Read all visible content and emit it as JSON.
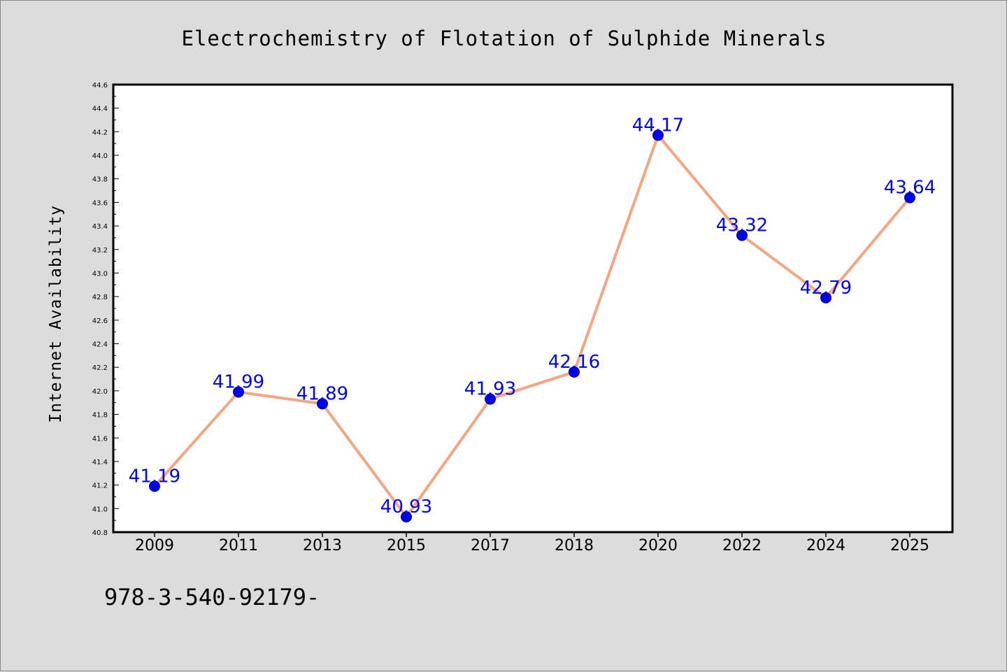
{
  "figure": {
    "footer_text": "978-3-540-92179-"
  },
  "colors": {
    "background": "#dcdcdc",
    "plot_area": "#ffffff",
    "line": "#f4a582",
    "marker": "#0000ee",
    "data_label": "#0000ff"
  },
  "chart_data": {
    "type": "line",
    "title": "Electrochemistry of Flotation of Sulphide Minerals",
    "xlabel": "",
    "ylabel": "Internet Availability",
    "categories": [
      "2009",
      "2011",
      "2013",
      "2015",
      "2017",
      "2018",
      "2020",
      "2022",
      "2024",
      "2025"
    ],
    "series": [
      {
        "values": [
          41.19,
          41.99,
          41.89,
          40.93,
          41.93,
          42.16,
          44.17,
          43.32,
          42.79,
          43.64
        ],
        "labels": [
          "41.19",
          "41.99",
          "41.89",
          "40.93",
          "41.93",
          "42.16",
          "44.17",
          "43.32",
          "42.79",
          "43.64"
        ]
      }
    ],
    "ylim": [
      40.8,
      44.6
    ],
    "yticks": [
      "40.8",
      "41.0",
      "41.2",
      "41.4",
      "41.6",
      "41.8",
      "42.0",
      "42.2",
      "42.4",
      "42.6",
      "42.8",
      "43.0",
      "43.2",
      "43.4",
      "43.6",
      "43.8",
      "44.0",
      "44.2",
      "44.4",
      "44.6"
    ],
    "grid": false,
    "legend": "none",
    "markers": "circle"
  }
}
